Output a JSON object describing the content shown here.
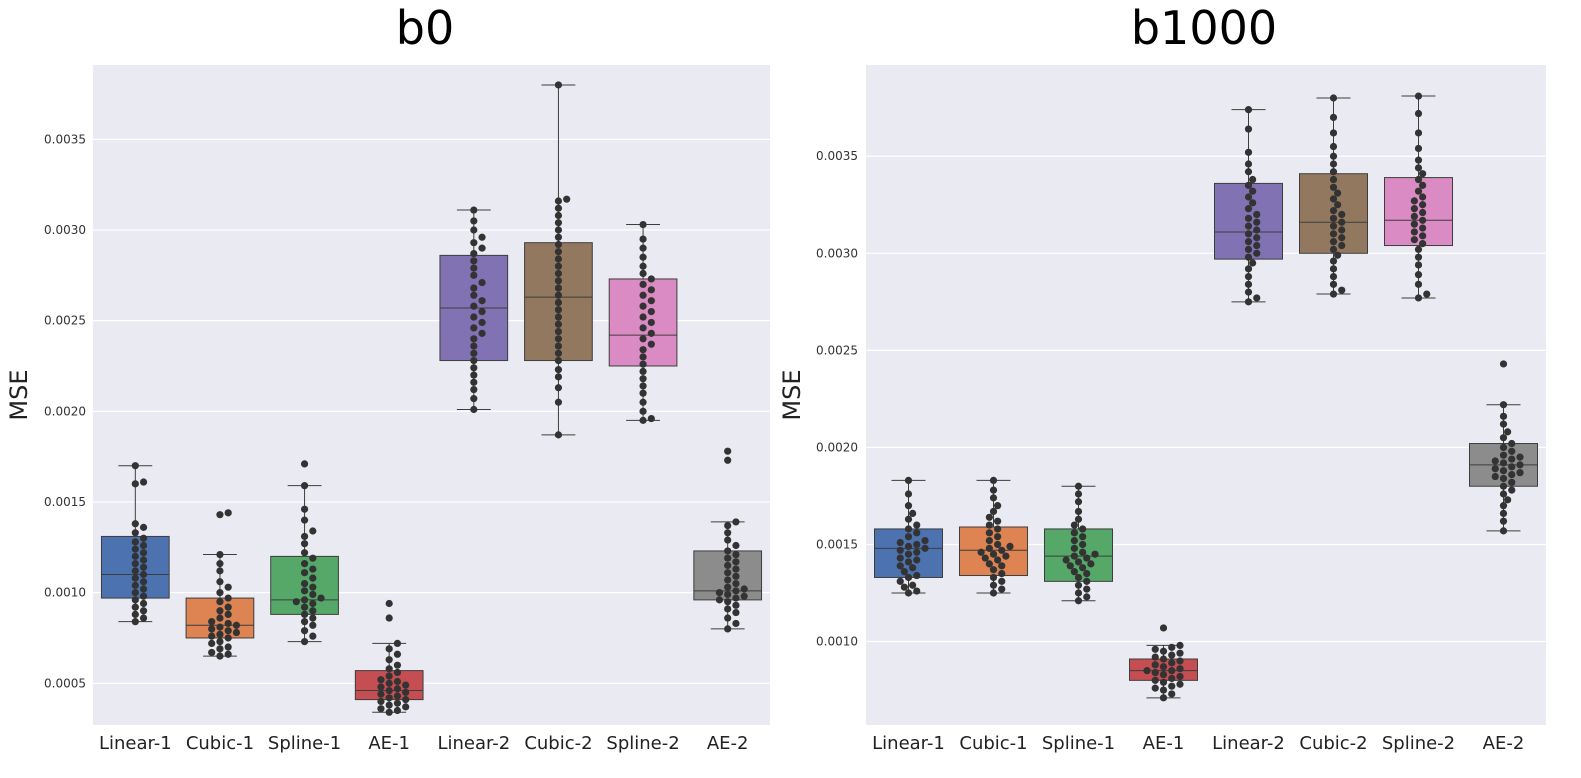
{
  "chart_data": [
    {
      "type": "box",
      "title": "b0",
      "xlabel": "",
      "ylabel": "MSE",
      "ylim": [
        0.00027,
        0.00391
      ],
      "yticks": [
        {
          "value": 0.0005,
          "label": "0.0005"
        },
        {
          "value": 0.001,
          "label": "0.0010"
        },
        {
          "value": 0.0015,
          "label": "0.0015"
        },
        {
          "value": 0.002,
          "label": "0.0020"
        },
        {
          "value": 0.0025,
          "label": "0.0025"
        },
        {
          "value": 0.003,
          "label": "0.0030"
        },
        {
          "value": 0.0035,
          "label": "0.0035"
        }
      ],
      "categories": [
        "Linear-1",
        "Cubic-1",
        "Spline-1",
        "AE-1",
        "Linear-2",
        "Cubic-2",
        "Spline-2",
        "AE-2"
      ],
      "boxes": [
        {
          "category": "Linear-1",
          "color": "#4c72b0",
          "min": 0.00084,
          "q1": 0.00097,
          "median": 0.0011,
          "q3": 0.00131,
          "max": 0.0017,
          "points": [
            0.00084,
            0.00086,
            0.00088,
            0.0009,
            0.00092,
            0.00094,
            0.00096,
            0.00098,
            0.001,
            0.00102,
            0.00104,
            0.00106,
            0.00108,
            0.0011,
            0.00112,
            0.00114,
            0.00116,
            0.00118,
            0.0012,
            0.00122,
            0.00124,
            0.00126,
            0.00128,
            0.0013,
            0.00133,
            0.00136,
            0.00138,
            0.0016,
            0.00161,
            0.0017
          ]
        },
        {
          "category": "Cubic-1",
          "color": "#dd8452",
          "min": 0.00065,
          "q1": 0.00075,
          "median": 0.00082,
          "q3": 0.00097,
          "max": 0.00121,
          "points": [
            0.00065,
            0.00066,
            0.00067,
            0.00069,
            0.0007,
            0.00072,
            0.00073,
            0.00075,
            0.00076,
            0.00077,
            0.00078,
            0.00079,
            0.0008,
            0.00081,
            0.00082,
            0.00083,
            0.00084,
            0.00086,
            0.00088,
            0.0009,
            0.00092,
            0.00095,
            0.00097,
            0.001,
            0.00103,
            0.00106,
            0.00112,
            0.00116,
            0.00121,
            0.00143,
            0.00144
          ]
        },
        {
          "category": "Spline-1",
          "color": "#55a868",
          "min": 0.00073,
          "q1": 0.00088,
          "median": 0.00096,
          "q3": 0.0012,
          "max": 0.00159,
          "points": [
            0.00073,
            0.00076,
            0.00079,
            0.00082,
            0.00084,
            0.00086,
            0.00088,
            0.0009,
            0.00092,
            0.00094,
            0.00095,
            0.00096,
            0.00097,
            0.00099,
            0.00101,
            0.00103,
            0.00105,
            0.00108,
            0.00111,
            0.00113,
            0.00116,
            0.00119,
            0.00122,
            0.00127,
            0.00131,
            0.00134,
            0.0014,
            0.00146,
            0.00159,
            0.00171
          ]
        },
        {
          "category": "AE-1",
          "color": "#c44e52",
          "min": 0.00034,
          "q1": 0.00041,
          "median": 0.00046,
          "q3": 0.00057,
          "max": 0.00072,
          "points": [
            0.00034,
            0.00035,
            0.00036,
            0.00037,
            0.00038,
            0.00039,
            0.0004,
            0.00041,
            0.00042,
            0.00043,
            0.00044,
            0.00045,
            0.00046,
            0.00047,
            0.00048,
            0.00049,
            0.0005,
            0.00051,
            0.00052,
            0.00054,
            0.00056,
            0.00058,
            0.0006,
            0.00063,
            0.00066,
            0.00069,
            0.00072,
            0.00086,
            0.00094
          ]
        },
        {
          "category": "Linear-2",
          "color": "#8172b3",
          "min": 0.00201,
          "q1": 0.00228,
          "median": 0.00257,
          "q3": 0.00286,
          "max": 0.00311,
          "points": [
            0.00201,
            0.00207,
            0.00212,
            0.00216,
            0.0022,
            0.00224,
            0.00228,
            0.00232,
            0.00236,
            0.0024,
            0.00243,
            0.00246,
            0.00249,
            0.00252,
            0.00255,
            0.00258,
            0.00261,
            0.00264,
            0.00268,
            0.00271,
            0.00275,
            0.00279,
            0.00283,
            0.00287,
            0.0029,
            0.00293,
            0.00296,
            0.003,
            0.00305,
            0.00311
          ]
        },
        {
          "category": "Cubic-2",
          "color": "#937860",
          "min": 0.00187,
          "q1": 0.00228,
          "median": 0.00263,
          "q3": 0.00293,
          "max": 0.0038,
          "points": [
            0.00187,
            0.00205,
            0.00213,
            0.00219,
            0.00223,
            0.00228,
            0.00232,
            0.00236,
            0.0024,
            0.00244,
            0.00248,
            0.00252,
            0.00256,
            0.0026,
            0.00264,
            0.00268,
            0.00272,
            0.00276,
            0.0028,
            0.00284,
            0.00288,
            0.00292,
            0.00296,
            0.003,
            0.00304,
            0.00308,
            0.00312,
            0.00316,
            0.00317,
            0.0038
          ]
        },
        {
          "category": "Spline-2",
          "color": "#da8bc3",
          "min": 0.00195,
          "q1": 0.00225,
          "median": 0.00242,
          "q3": 0.00273,
          "max": 0.00303,
          "points": [
            0.00195,
            0.00196,
            0.002,
            0.00205,
            0.0021,
            0.00214,
            0.00218,
            0.00222,
            0.00226,
            0.0023,
            0.00234,
            0.00237,
            0.0024,
            0.00243,
            0.00246,
            0.00249,
            0.00252,
            0.00255,
            0.00258,
            0.00261,
            0.00264,
            0.00267,
            0.0027,
            0.00273,
            0.00276,
            0.0028,
            0.00285,
            0.0029,
            0.00295,
            0.00303
          ]
        },
        {
          "category": "AE-2",
          "color": "#8c8c8c",
          "min": 0.0008,
          "q1": 0.00096,
          "median": 0.00101,
          "q3": 0.00123,
          "max": 0.00139,
          "points": [
            0.0008,
            0.00083,
            0.00086,
            0.00089,
            0.00091,
            0.00093,
            0.00095,
            0.00096,
            0.00097,
            0.00098,
            0.00099,
            0.001,
            0.00101,
            0.00102,
            0.00103,
            0.00105,
            0.00107,
            0.00109,
            0.00111,
            0.00113,
            0.00115,
            0.00117,
            0.00119,
            0.00121,
            0.00123,
            0.00126,
            0.00129,
            0.00133,
            0.00137,
            0.00139,
            0.00173,
            0.00178
          ]
        }
      ]
    },
    {
      "type": "box",
      "title": "b1000",
      "xlabel": "",
      "ylabel": "MSE",
      "ylim": [
        0.00057,
        0.00397
      ],
      "yticks": [
        {
          "value": 0.001,
          "label": "0.0010"
        },
        {
          "value": 0.0015,
          "label": "0.0015"
        },
        {
          "value": 0.002,
          "label": "0.0020"
        },
        {
          "value": 0.0025,
          "label": "0.0025"
        },
        {
          "value": 0.003,
          "label": "0.0030"
        },
        {
          "value": 0.0035,
          "label": "0.0035"
        }
      ],
      "categories": [
        "Linear-1",
        "Cubic-1",
        "Spline-1",
        "AE-1",
        "Linear-2",
        "Cubic-2",
        "Spline-2",
        "AE-2"
      ],
      "boxes": [
        {
          "category": "Linear-1",
          "color": "#4c72b0",
          "min": 0.00125,
          "q1": 0.00133,
          "median": 0.00148,
          "q3": 0.00158,
          "max": 0.00183,
          "points": [
            0.00125,
            0.00126,
            0.00128,
            0.00129,
            0.00131,
            0.00133,
            0.00134,
            0.00136,
            0.00138,
            0.00139,
            0.00141,
            0.00142,
            0.00143,
            0.00145,
            0.00146,
            0.00147,
            0.00148,
            0.00149,
            0.0015,
            0.00151,
            0.00152,
            0.00154,
            0.00156,
            0.00158,
            0.0016,
            0.00163,
            0.00166,
            0.0017,
            0.00176,
            0.00183
          ]
        },
        {
          "category": "Cubic-1",
          "color": "#dd8452",
          "min": 0.00125,
          "q1": 0.00134,
          "median": 0.00147,
          "q3": 0.00159,
          "max": 0.00183,
          "points": [
            0.00125,
            0.00127,
            0.00129,
            0.00131,
            0.00133,
            0.00135,
            0.00137,
            0.00139,
            0.0014,
            0.00142,
            0.00143,
            0.00144,
            0.00145,
            0.00146,
            0.00147,
            0.00148,
            0.00149,
            0.0015,
            0.00152,
            0.00154,
            0.00156,
            0.00158,
            0.0016,
            0.00162,
            0.00164,
            0.00167,
            0.0017,
            0.00174,
            0.00178,
            0.00183
          ]
        },
        {
          "category": "Spline-1",
          "color": "#55a868",
          "min": 0.00121,
          "q1": 0.00131,
          "median": 0.00144,
          "q3": 0.00158,
          "max": 0.0018,
          "points": [
            0.00121,
            0.00123,
            0.00125,
            0.00127,
            0.00129,
            0.00131,
            0.00133,
            0.00135,
            0.00136,
            0.00138,
            0.00139,
            0.0014,
            0.00141,
            0.00142,
            0.00143,
            0.00144,
            0.00145,
            0.00146,
            0.00148,
            0.0015,
            0.00152,
            0.00154,
            0.00156,
            0.00158,
            0.0016,
            0.00163,
            0.00167,
            0.00172,
            0.00176,
            0.0018
          ]
        },
        {
          "category": "AE-1",
          "color": "#c44e52",
          "min": 0.00071,
          "q1": 0.0008,
          "median": 0.00085,
          "q3": 0.00091,
          "max": 0.00098,
          "points": [
            0.00071,
            0.00073,
            0.00075,
            0.00076,
            0.00077,
            0.00078,
            0.00079,
            0.0008,
            0.00081,
            0.00082,
            0.00083,
            0.00084,
            0.00085,
            0.00085,
            0.00086,
            0.00087,
            0.00088,
            0.00089,
            0.0009,
            0.00091,
            0.00092,
            0.00093,
            0.00094,
            0.00095,
            0.00096,
            0.00097,
            0.00098,
            0.00107
          ]
        },
        {
          "category": "Linear-2",
          "color": "#8172b3",
          "min": 0.00275,
          "q1": 0.00297,
          "median": 0.00311,
          "q3": 0.00336,
          "max": 0.00374,
          "points": [
            0.00275,
            0.00277,
            0.0028,
            0.00284,
            0.00288,
            0.00292,
            0.00295,
            0.00298,
            0.003,
            0.00302,
            0.00304,
            0.00306,
            0.00308,
            0.0031,
            0.00312,
            0.00314,
            0.00316,
            0.00318,
            0.0032,
            0.00323,
            0.00326,
            0.00329,
            0.00332,
            0.00335,
            0.00338,
            0.00342,
            0.00346,
            0.00352,
            0.00364,
            0.00374
          ]
        },
        {
          "category": "Cubic-2",
          "color": "#937860",
          "min": 0.00279,
          "q1": 0.003,
          "median": 0.00316,
          "q3": 0.00341,
          "max": 0.0038,
          "points": [
            0.00279,
            0.00281,
            0.00284,
            0.00288,
            0.00292,
            0.00296,
            0.00299,
            0.00302,
            0.00304,
            0.00306,
            0.00308,
            0.0031,
            0.00312,
            0.00314,
            0.00316,
            0.00318,
            0.0032,
            0.00322,
            0.00325,
            0.00328,
            0.00331,
            0.00334,
            0.00338,
            0.00342,
            0.00346,
            0.0035,
            0.00355,
            0.00362,
            0.0037,
            0.0038
          ]
        },
        {
          "category": "Spline-2",
          "color": "#da8bc3",
          "min": 0.00277,
          "q1": 0.00304,
          "median": 0.00317,
          "q3": 0.00339,
          "max": 0.00381,
          "points": [
            0.00277,
            0.00279,
            0.00284,
            0.00289,
            0.00294,
            0.00298,
            0.00302,
            0.00305,
            0.00307,
            0.00309,
            0.00311,
            0.00313,
            0.00315,
            0.00317,
            0.00319,
            0.00321,
            0.00323,
            0.00325,
            0.00327,
            0.00329,
            0.00332,
            0.00335,
            0.00338,
            0.00341,
            0.00344,
            0.00348,
            0.00354,
            0.00362,
            0.00372,
            0.00381
          ]
        },
        {
          "category": "AE-2",
          "color": "#8c8c8c",
          "min": 0.00157,
          "q1": 0.0018,
          "median": 0.00191,
          "q3": 0.00202,
          "max": 0.00222,
          "points": [
            0.00157,
            0.00162,
            0.00166,
            0.0017,
            0.00173,
            0.00176,
            0.00178,
            0.0018,
            0.00182,
            0.00184,
            0.00185,
            0.00186,
            0.00187,
            0.00188,
            0.00189,
            0.0019,
            0.00191,
            0.00192,
            0.00193,
            0.00194,
            0.00195,
            0.00196,
            0.00198,
            0.002,
            0.00202,
            0.00205,
            0.00208,
            0.00212,
            0.00216,
            0.00222,
            0.00243
          ]
        }
      ]
    }
  ]
}
